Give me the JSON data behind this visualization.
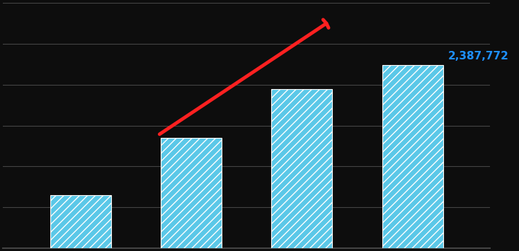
{
  "categories": [
    "",
    "",
    "",
    ""
  ],
  "values": [
    430929,
    900000,
    1300000,
    1492728
  ],
  "bar_color": "#5BC8E8",
  "annotation_value": "2,387,772",
  "annotation_color": "#1E90FF",
  "arrow_color": "#FF2020",
  "ylim": [
    0,
    2000000
  ],
  "background_color": "#0D0D0D",
  "grid_color": "#444444",
  "bar_width": 0.55,
  "n_gridlines": 6
}
